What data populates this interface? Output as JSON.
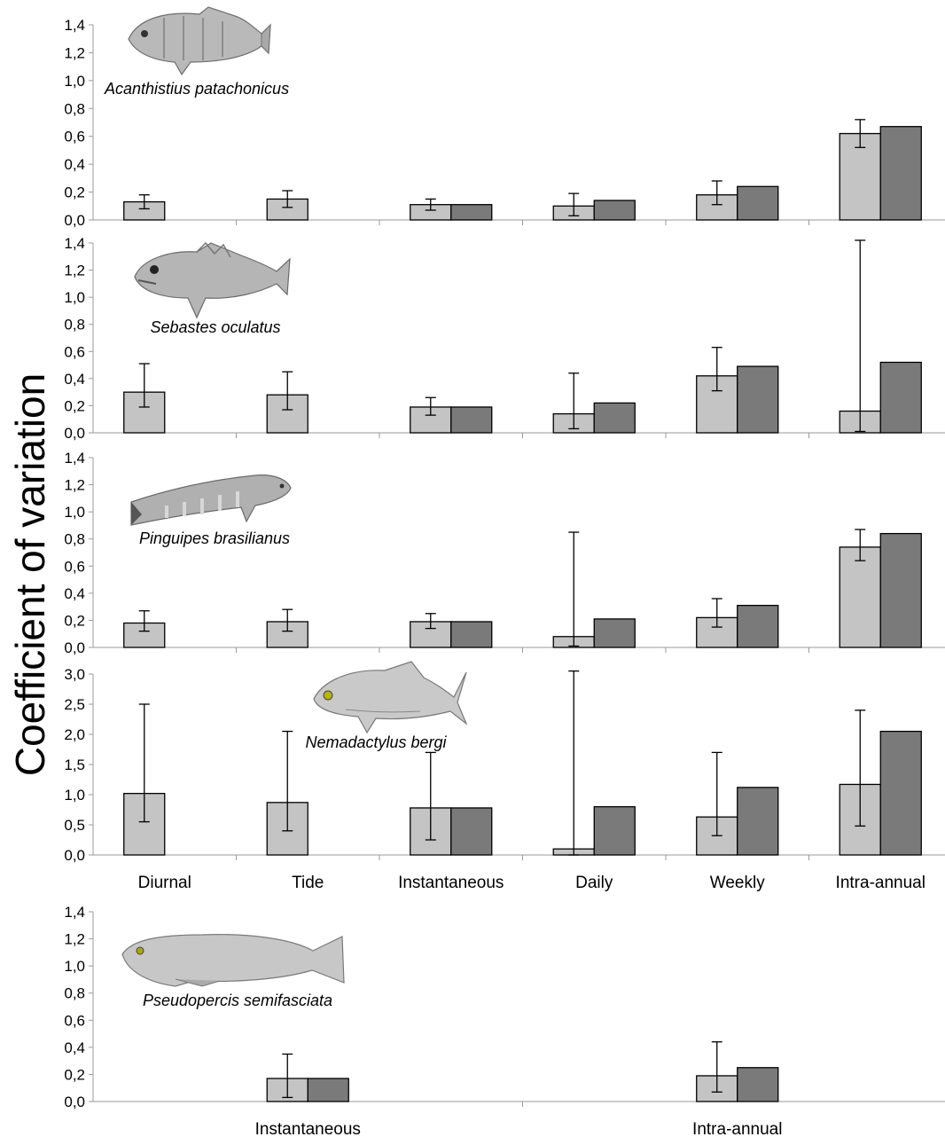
{
  "ylabel": "Coefficient of variation",
  "colors": {
    "light_bar": "#c4c4c4",
    "dark_bar": "#7a7a7a",
    "axis": "#9a9a9a",
    "error": "#000000"
  },
  "chart_data": [
    {
      "type": "bar",
      "species": "Acanthistius patachonicus",
      "categories": [
        "Diurnal",
        "Tide",
        "Instantaneous",
        "Daily",
        "Weekly",
        "Intra-annual"
      ],
      "ylim": [
        0,
        1.4
      ],
      "yticks": [
        "0,0",
        "0,2",
        "0,4",
        "0,6",
        "0,8",
        "1,0",
        "1,2",
        "1,4"
      ],
      "show_xticklabels": false,
      "series": [
        {
          "values": [
            0.13,
            0.15,
            0.11,
            0.1,
            0.18,
            0.62
          ],
          "err_low": [
            0.08,
            0.09,
            0.07,
            0.03,
            0.11,
            0.52
          ],
          "err_high": [
            0.18,
            0.21,
            0.15,
            0.19,
            0.28,
            0.72
          ]
        },
        {
          "values": [
            null,
            null,
            0.11,
            0.14,
            0.24,
            0.67
          ]
        }
      ]
    },
    {
      "type": "bar",
      "species": "Sebastes oculatus",
      "categories": [
        "Diurnal",
        "Tide",
        "Instantaneous",
        "Daily",
        "Weekly",
        "Intra-annual"
      ],
      "ylim": [
        0,
        1.4
      ],
      "yticks": [
        "0,0",
        "0,2",
        "0,4",
        "0,6",
        "0,8",
        "1,0",
        "1,2",
        "1,4"
      ],
      "show_xticklabels": false,
      "series": [
        {
          "values": [
            0.3,
            0.28,
            0.19,
            0.14,
            0.42,
            0.16
          ],
          "err_low": [
            0.19,
            0.17,
            0.13,
            0.03,
            0.31,
            0.01
          ],
          "err_high": [
            0.51,
            0.45,
            0.26,
            0.44,
            0.63,
            1.42
          ]
        },
        {
          "values": [
            null,
            null,
            0.19,
            0.22,
            0.49,
            0.52
          ]
        }
      ]
    },
    {
      "type": "bar",
      "species": "Pinguipes brasilianus",
      "categories": [
        "Diurnal",
        "Tide",
        "Instantaneous",
        "Daily",
        "Weekly",
        "Intra-annual"
      ],
      "ylim": [
        0,
        1.4
      ],
      "yticks": [
        "0,0",
        "0,2",
        "0,4",
        "0,6",
        "0,8",
        "1,0",
        "1,2",
        "1,4"
      ],
      "show_xticklabels": false,
      "series": [
        {
          "values": [
            0.18,
            0.19,
            0.19,
            0.08,
            0.22,
            0.74
          ],
          "err_low": [
            0.12,
            0.12,
            0.14,
            0.01,
            0.15,
            0.64
          ],
          "err_high": [
            0.27,
            0.28,
            0.25,
            0.85,
            0.36,
            0.87
          ]
        },
        {
          "values": [
            null,
            null,
            0.19,
            0.21,
            0.31,
            0.84
          ]
        }
      ]
    },
    {
      "type": "bar",
      "species": "Nemadactylus bergi",
      "categories": [
        "Diurnal",
        "Tide",
        "Instantaneous",
        "Daily",
        "Weekly",
        "Intra-annual"
      ],
      "ylim": [
        0,
        3.0
      ],
      "yticks": [
        "0,0",
        "0,5",
        "1,0",
        "1,5",
        "2,0",
        "2,5",
        "3,0"
      ],
      "show_xticklabels": true,
      "series": [
        {
          "values": [
            1.02,
            0.87,
            0.78,
            0.1,
            0.63,
            1.17
          ],
          "err_low": [
            0.55,
            0.4,
            0.25,
            0.0,
            0.32,
            0.48
          ],
          "err_high": [
            2.5,
            2.05,
            1.7,
            3.05,
            1.7,
            2.4
          ]
        },
        {
          "values": [
            null,
            null,
            0.78,
            0.8,
            1.12,
            2.05
          ]
        }
      ]
    },
    {
      "type": "bar",
      "species": "Pseudopercis semifasciata",
      "categories": [
        "Instantaneous",
        "Intra-annual"
      ],
      "ylim": [
        0,
        1.4
      ],
      "yticks": [
        "0,0",
        "0,2",
        "0,4",
        "0,6",
        "0,8",
        "1,0",
        "1,2",
        "1,4"
      ],
      "show_xticklabels": true,
      "series": [
        {
          "values": [
            0.17,
            0.19
          ],
          "err_low": [
            0.03,
            0.07
          ],
          "err_high": [
            0.35,
            0.44
          ]
        },
        {
          "values": [
            0.17,
            0.25
          ]
        }
      ]
    }
  ],
  "fish_icons": [
    "fish-icon-grouper",
    "fish-icon-rockfish",
    "fish-icon-sandperch",
    "fish-icon-morwong",
    "fish-icon-weakfish"
  ]
}
